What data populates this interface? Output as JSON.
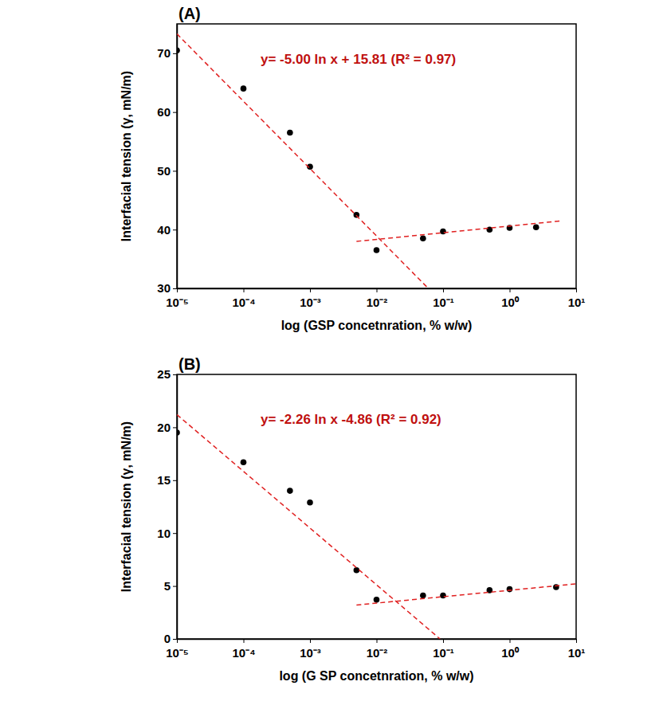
{
  "chart_data": [
    {
      "type": "scatter",
      "title": "(A)",
      "x_label": "log (GSP concetnration, % w/w)",
      "y_label": "Interfacial tension (γ, mN/m)",
      "annotation": "y= -5.00 ln x + 15.81 (R² = 0.97)",
      "log": "x",
      "grid": false,
      "xlim": [
        1e-05,
        10
      ],
      "ylim": [
        30,
        75
      ],
      "xticks": [
        {
          "value": 1e-05,
          "label": "10⁻⁵"
        },
        {
          "value": 0.0001,
          "label": "10⁻⁴"
        },
        {
          "value": 0.001,
          "label": "10⁻³"
        },
        {
          "value": 0.01,
          "label": "10⁻²"
        },
        {
          "value": 0.1,
          "label": "10⁻¹"
        },
        {
          "value": 1,
          "label": "10⁰"
        },
        {
          "value": 10,
          "label": "10¹"
        }
      ],
      "yticks": [
        30,
        40,
        50,
        60,
        70
      ],
      "series": [
        {
          "type": "scatter",
          "marker": "circle",
          "color": "#000000",
          "x": [
            1e-05,
            0.0001,
            0.0005,
            0.001,
            0.005,
            0.01,
            0.05,
            0.1,
            0.5,
            1,
            2.5
          ],
          "values": [
            70.5,
            64,
            56.5,
            50.7,
            42.5,
            36.5,
            38.5,
            39.7,
            40,
            40.3,
            40.4
          ]
        },
        {
          "type": "line",
          "line_style": "dashed",
          "color": "#e02020",
          "x": [
            1e-05,
            0.06
          ],
          "values": [
            73.3,
            30
          ]
        },
        {
          "type": "line",
          "line_style": "dashed",
          "color": "#e02020",
          "x": [
            0.005,
            6
          ],
          "values": [
            38,
            41.5
          ]
        }
      ]
    },
    {
      "type": "scatter",
      "title": "(B)",
      "x_label": "log (G SP concetnration, % w/w)",
      "y_label": "Interfacial tension (γ, mN/m)",
      "annotation": "y= -2.26 ln x -4.86 (R² = 0.92)",
      "log": "x",
      "grid": false,
      "xlim": [
        1e-05,
        10
      ],
      "ylim": [
        0,
        25
      ],
      "xticks": [
        {
          "value": 1e-05,
          "label": "10⁻⁵"
        },
        {
          "value": 0.0001,
          "label": "10⁻⁴"
        },
        {
          "value": 0.001,
          "label": "10⁻³"
        },
        {
          "value": 0.01,
          "label": "10⁻²"
        },
        {
          "value": 0.1,
          "label": "10⁻¹"
        },
        {
          "value": 1,
          "label": "10⁰"
        },
        {
          "value": 10,
          "label": "10¹"
        }
      ],
      "yticks": [
        0,
        5,
        10,
        15,
        20,
        25
      ],
      "series": [
        {
          "type": "scatter",
          "marker": "circle",
          "color": "#000000",
          "x": [
            1e-05,
            0.0001,
            0.0005,
            0.001,
            0.005,
            0.01,
            0.05,
            0.1,
            0.5,
            1,
            5
          ],
          "values": [
            19.5,
            16.7,
            14,
            12.9,
            6.5,
            3.7,
            4.1,
            4.1,
            4.6,
            4.7,
            4.9
          ]
        },
        {
          "type": "line",
          "line_style": "dashed",
          "color": "#e02020",
          "x": [
            1e-05,
            0.09
          ],
          "values": [
            21.2,
            0
          ]
        },
        {
          "type": "line",
          "line_style": "dashed",
          "color": "#e02020",
          "x": [
            0.005,
            10
          ],
          "values": [
            3.2,
            5.2
          ]
        }
      ]
    }
  ]
}
